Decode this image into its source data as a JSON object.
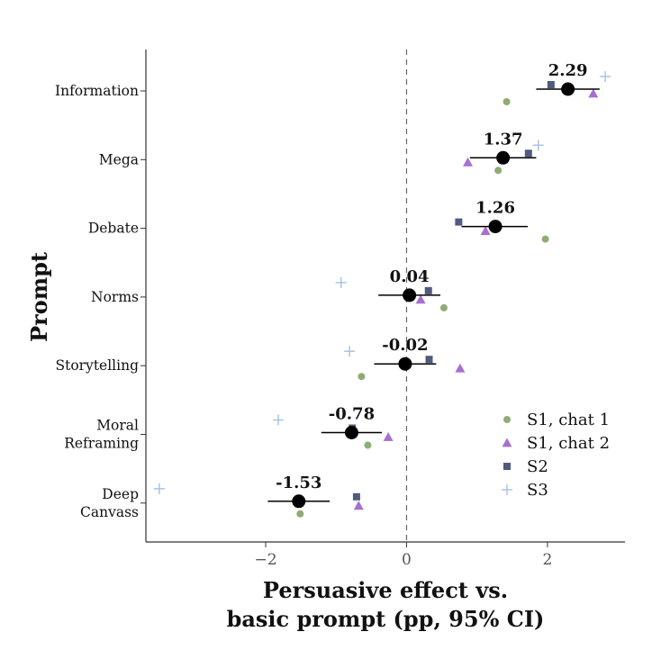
{
  "chart_data": {
    "type": "scatter",
    "xlabel": [
      "Persuasive effect vs.",
      "basic prompt (pp, 95% CI)"
    ],
    "ylabel": "Prompt",
    "xlim": [
      -3.7,
      3.1
    ],
    "xticks": [
      -2,
      0,
      2
    ],
    "reference_line_x": 0,
    "grid": false,
    "legend_position": "bottom-right",
    "categories": [
      [
        "Information"
      ],
      [
        "Mega"
      ],
      [
        "Debate"
      ],
      [
        "Norms"
      ],
      [
        "Storytelling"
      ],
      [
        "Moral",
        "Reframing"
      ],
      [
        "Deep",
        "Canvass"
      ]
    ],
    "estimates": {
      "name": "",
      "values": [
        2.29,
        1.37,
        1.26,
        0.04,
        -0.02,
        -0.78,
        -1.53
      ],
      "labels": [
        "2.29",
        "1.37",
        "1.26",
        "0.04",
        "-0.02",
        "-0.78",
        "-1.53"
      ],
      "ci_low": [
        1.84,
        0.9,
        0.78,
        -0.4,
        -0.46,
        -1.21,
        -1.97
      ],
      "ci_high": [
        2.74,
        1.84,
        1.72,
        0.48,
        0.42,
        -0.35,
        -1.09
      ]
    },
    "series": [
      {
        "name": "S1, chat 1",
        "marker": "circle",
        "color": "#8fac74",
        "values": [
          1.42,
          1.3,
          1.97,
          0.53,
          -0.64,
          -0.55,
          -1.51
        ]
      },
      {
        "name": "S1, chat 2",
        "marker": "triangle",
        "color": "#a86fd0",
        "values": [
          2.65,
          0.87,
          1.12,
          0.2,
          0.76,
          -0.26,
          -0.68
        ]
      },
      {
        "name": "S2",
        "marker": "square",
        "color": "#4f5b7e",
        "values": [
          2.05,
          1.73,
          0.74,
          0.31,
          0.32,
          -0.77,
          -0.71
        ]
      },
      {
        "name": "S3",
        "marker": "plus",
        "color": "#a8c4e4",
        "values": [
          2.82,
          1.87,
          null,
          -0.93,
          -0.81,
          -1.82,
          -3.51
        ]
      }
    ]
  }
}
